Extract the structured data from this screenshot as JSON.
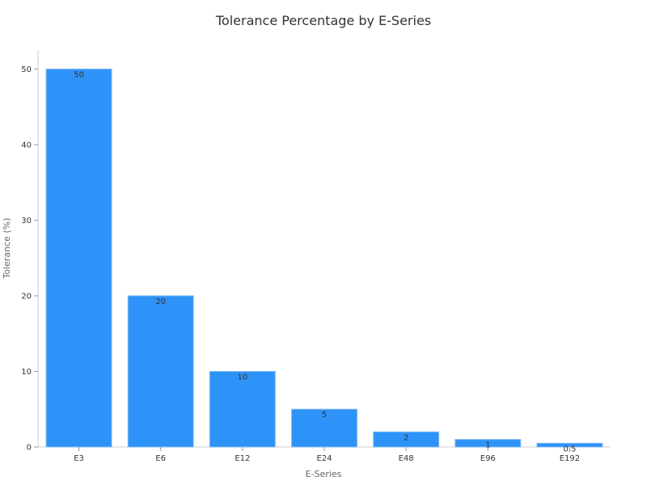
{
  "chart_data": {
    "type": "bar",
    "title": "Tolerance Percentage by E-Series",
    "xlabel": "E-Series",
    "ylabel": "Tolerance (%)",
    "categories": [
      "E3",
      "E6",
      "E12",
      "E24",
      "E48",
      "E96",
      "E192"
    ],
    "values": [
      50,
      20,
      10,
      5,
      2,
      1,
      0.5
    ],
    "data_labels": [
      "50",
      "20",
      "10",
      "5",
      "2",
      "1",
      "0.5"
    ],
    "ylim": [
      0,
      52.5
    ],
    "yticks": [
      0,
      10,
      20,
      30,
      40,
      50
    ],
    "grid": false,
    "legend": "none",
    "bar_color": "#2E93F8",
    "bar_edge_color": "#7FB9F5"
  }
}
